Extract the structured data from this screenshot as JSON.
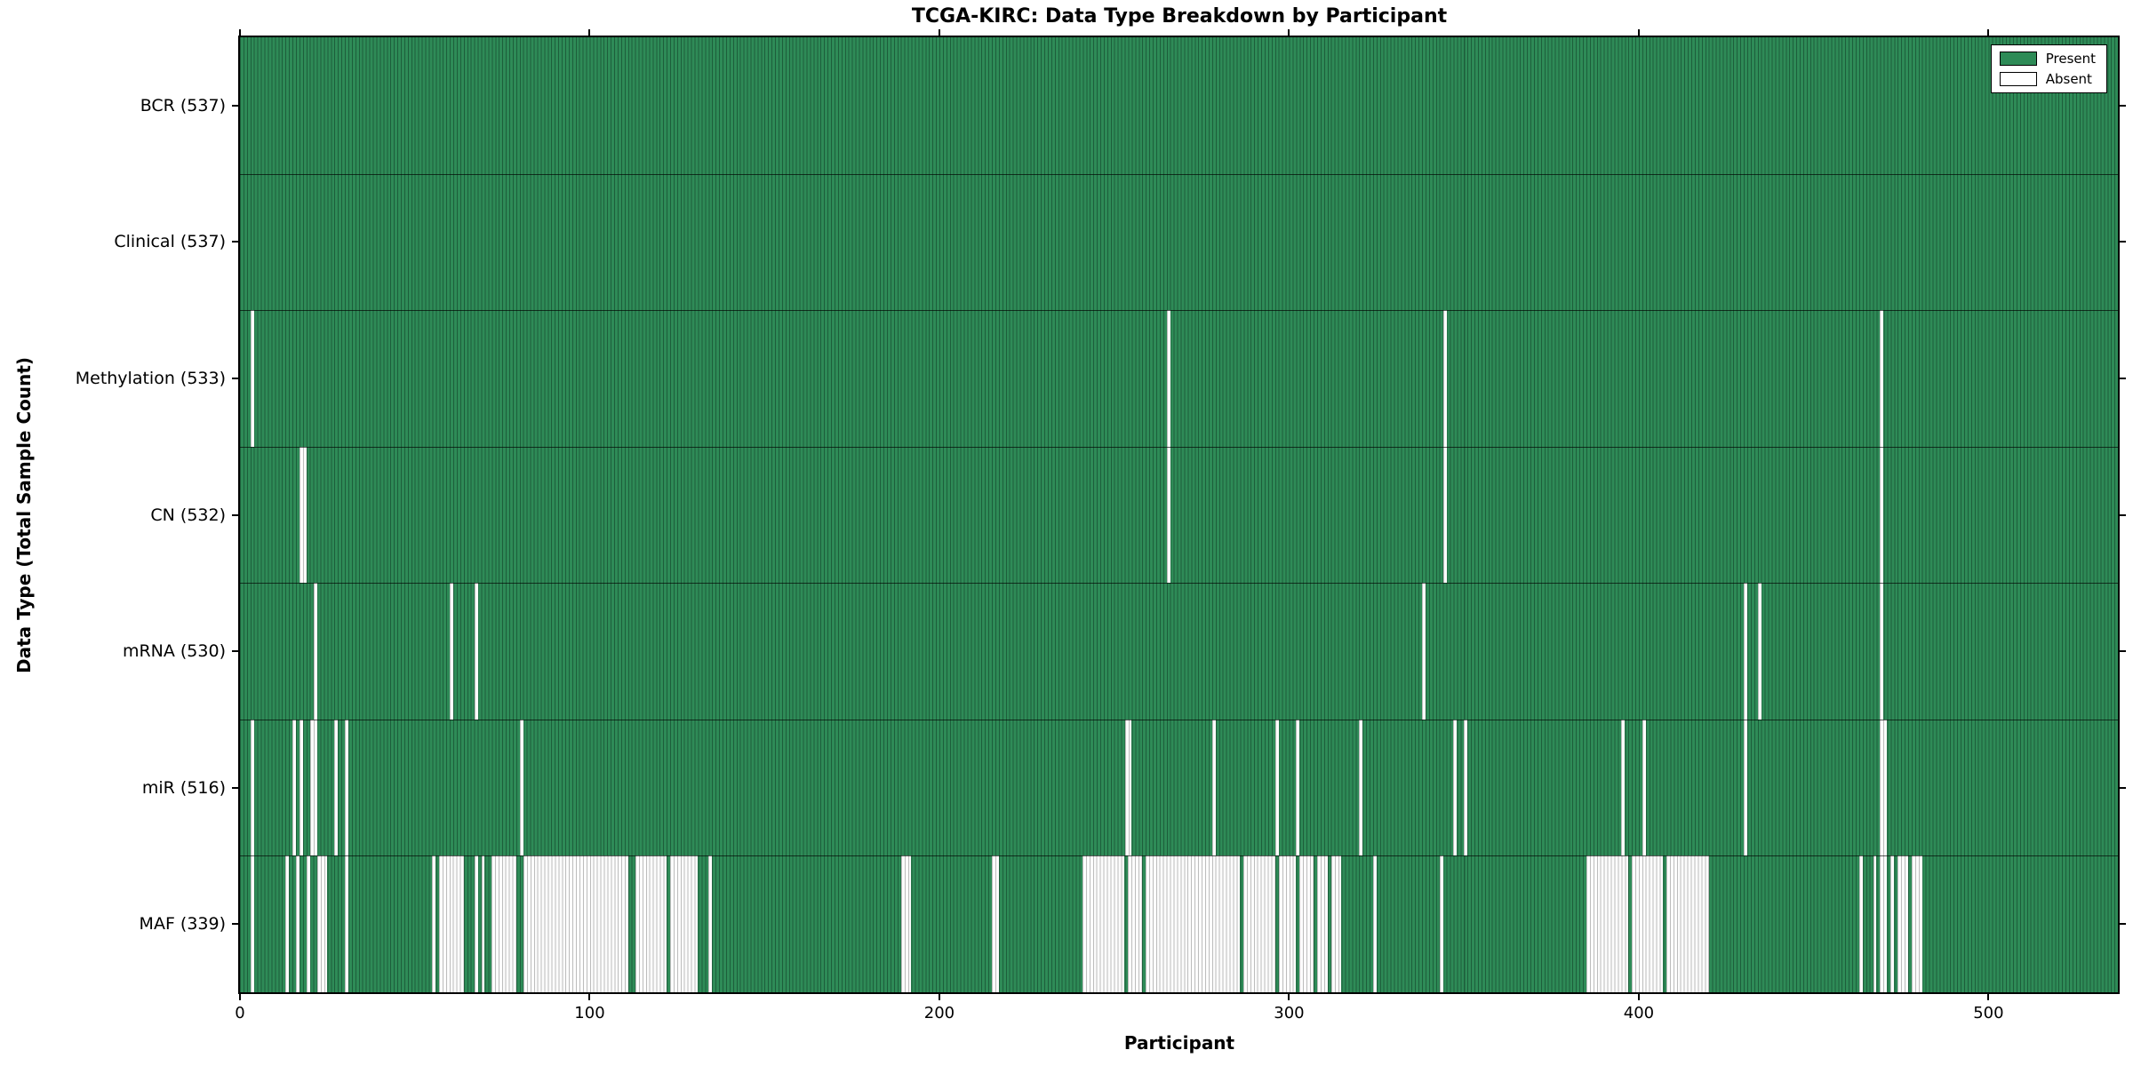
{
  "chart_data": {
    "type": "heatmap",
    "title": "TCGA-KIRC: Data Type Breakdown by Participant",
    "xlabel": "Participant",
    "ylabel": "Data Type (Total Sample Count)",
    "xlim": [
      0,
      537
    ],
    "x_ticks": [
      0,
      100,
      200,
      300,
      400,
      500
    ],
    "grid": false,
    "legend_position": "upper right",
    "legend": [
      {
        "label": "Present",
        "color": "#2e8b57"
      },
      {
        "label": "Absent",
        "color": "#ffffff"
      }
    ],
    "colors": {
      "present_fill": "#2e8b57",
      "present_edge": "#1d5e3b",
      "absent_fill": "#fcfcfc",
      "absent_edge": "#bdbdbd",
      "frame": "#000000",
      "background": "#ffffff"
    },
    "absent_ranges_note": "inclusive participant index ranges [start,end] estimated from plot; all other participants are Present",
    "rows": [
      {
        "data_type": "BCR",
        "count": 537,
        "label": "BCR (537)",
        "absent_ranges": []
      },
      {
        "data_type": "Clinical",
        "count": 537,
        "label": "Clinical (537)",
        "absent_ranges": []
      },
      {
        "data_type": "Methylation",
        "count": 533,
        "label": "Methylation (533)",
        "absent_ranges": [
          [
            3,
            3
          ],
          [
            265,
            265
          ],
          [
            344,
            344
          ],
          [
            469,
            469
          ]
        ]
      },
      {
        "data_type": "CN",
        "count": 532,
        "label": "CN (532)",
        "absent_ranges": [
          [
            17,
            18
          ],
          [
            265,
            265
          ],
          [
            344,
            344
          ],
          [
            469,
            469
          ]
        ]
      },
      {
        "data_type": "mRNA",
        "count": 530,
        "label": "mRNA (530)",
        "absent_ranges": [
          [
            21,
            21
          ],
          [
            60,
            60
          ],
          [
            67,
            67
          ],
          [
            338,
            338
          ],
          [
            430,
            430
          ],
          [
            434,
            434
          ],
          [
            469,
            469
          ]
        ]
      },
      {
        "data_type": "miR",
        "count": 516,
        "label": "miR (516)",
        "absent_ranges": [
          [
            3,
            3
          ],
          [
            15,
            15
          ],
          [
            17,
            17
          ],
          [
            20,
            21
          ],
          [
            27,
            27
          ],
          [
            30,
            30
          ],
          [
            80,
            80
          ],
          [
            253,
            254
          ],
          [
            278,
            278
          ],
          [
            296,
            296
          ],
          [
            302,
            302
          ],
          [
            320,
            320
          ],
          [
            347,
            347
          ],
          [
            350,
            350
          ],
          [
            395,
            395
          ],
          [
            401,
            401
          ],
          [
            430,
            430
          ],
          [
            469,
            470
          ]
        ]
      },
      {
        "data_type": "MAF",
        "count": 339,
        "label": "MAF (339)",
        "absent_ranges": [
          [
            3,
            3
          ],
          [
            13,
            13
          ],
          [
            16,
            16
          ],
          [
            19,
            19
          ],
          [
            22,
            24
          ],
          [
            30,
            30
          ],
          [
            55,
            55
          ],
          [
            57,
            63
          ],
          [
            67,
            67
          ],
          [
            69,
            69
          ],
          [
            72,
            78
          ],
          [
            81,
            110
          ],
          [
            113,
            121
          ],
          [
            123,
            130
          ],
          [
            134,
            134
          ],
          [
            189,
            191
          ],
          [
            215,
            216
          ],
          [
            241,
            252
          ],
          [
            254,
            257
          ],
          [
            259,
            285
          ],
          [
            287,
            295
          ],
          [
            297,
            301
          ],
          [
            303,
            306
          ],
          [
            308,
            310
          ],
          [
            312,
            314
          ],
          [
            324,
            324
          ],
          [
            343,
            343
          ],
          [
            385,
            396
          ],
          [
            398,
            406
          ],
          [
            408,
            419
          ],
          [
            463,
            463
          ],
          [
            467,
            467
          ],
          [
            469,
            470
          ],
          [
            472,
            472
          ],
          [
            474,
            476
          ],
          [
            478,
            480
          ]
        ]
      }
    ]
  }
}
